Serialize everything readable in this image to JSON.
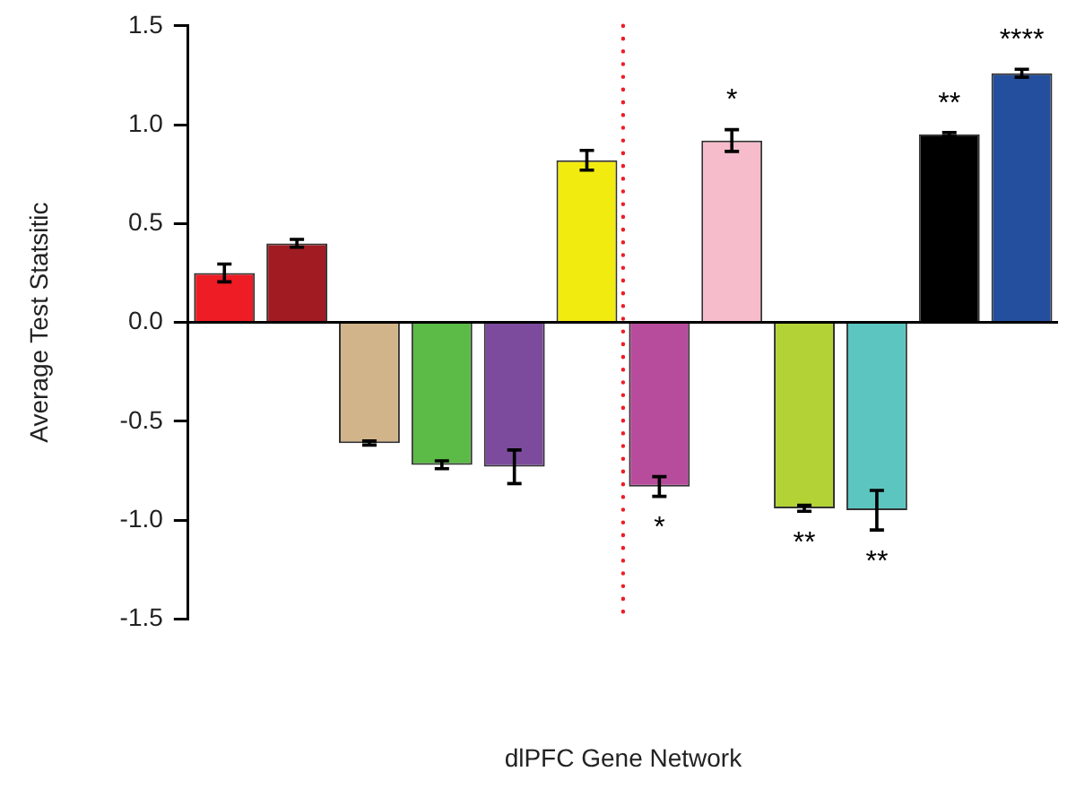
{
  "chart_data": {
    "type": "bar",
    "xlabel": "dlPFC Gene Network",
    "ylabel": "Average Test Statsitic",
    "categories": [
      null,
      null,
      null,
      null,
      null,
      null,
      null,
      null,
      null,
      null,
      null,
      null
    ],
    "values": [
      0.25,
      0.4,
      -0.61,
      -0.72,
      -0.73,
      0.82,
      -0.83,
      0.92,
      -0.94,
      -0.95,
      0.95,
      1.26
    ],
    "colors": [
      "#ee1c25",
      "#a01c22",
      "#d2b48a",
      "#5cba47",
      "#7d4b9d",
      "#f2eb10",
      "#b84c9c",
      "#f6bccb",
      "#b3d236",
      "#5cc5c0",
      "#000000",
      "#244f9e"
    ],
    "errors": [
      0.045,
      0.02,
      0.01,
      0.02,
      0.085,
      0.05,
      0.05,
      0.055,
      0.015,
      0.1,
      0.01,
      0.02
    ],
    "value_labels": [
      null,
      null,
      null,
      null,
      null,
      null,
      "*",
      "*",
      "**",
      "**",
      "**",
      "****"
    ],
    "ylim": [
      -1.5,
      1.5
    ],
    "yticks": [
      -1.5,
      {
        "value": -1,
        "label": "-1.0"
      },
      -0.5,
      {
        "value": 0,
        "label": "0.0"
      },
      0.5,
      {
        "value": 1,
        "label": "1.0"
      },
      1.5
    ],
    "tick_labels": "y",
    "grid": false,
    "legend": false
  }
}
